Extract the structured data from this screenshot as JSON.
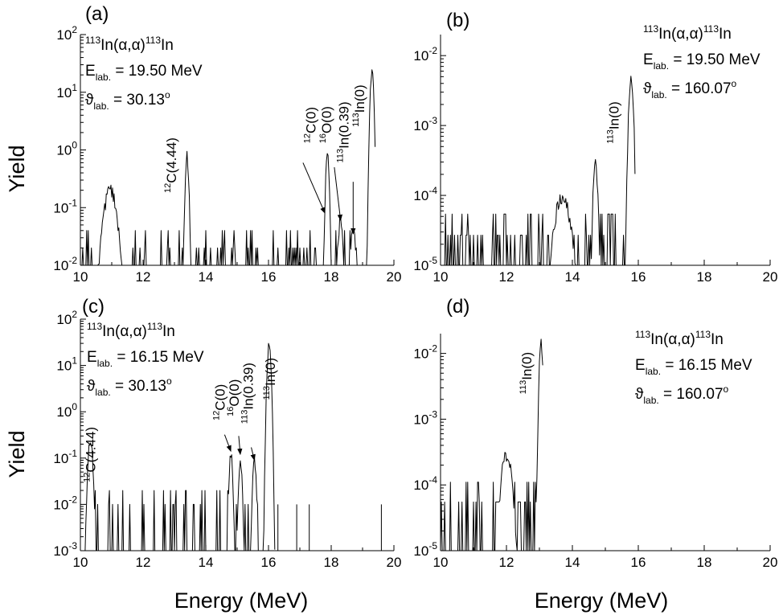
{
  "figure": {
    "ylabel": "Yield",
    "xlabel": "Energy (MeV)"
  },
  "chart_data": [
    {
      "id": "a",
      "type": "line",
      "panel_label": "(a)",
      "xlim": [
        10,
        20
      ],
      "x_ticks": [
        10,
        12,
        14,
        16,
        18,
        20
      ],
      "y_scale": "log",
      "ylim": [
        0.01,
        100
      ],
      "y_ticks": [
        {
          "v": 0.01,
          "m": "10",
          "e": "-2"
        },
        {
          "v": 0.1,
          "m": "10",
          "e": "-1"
        },
        {
          "v": 1,
          "m": "10",
          "e": "0"
        },
        {
          "v": 10,
          "m": "10",
          "e": "1"
        },
        {
          "v": 100,
          "m": "10",
          "e": "2"
        }
      ],
      "info": {
        "reaction": {
          "p1": "113",
          "t1": "In(α,α)",
          "p2": "113",
          "t2": "In"
        },
        "energy": {
          "sym": "E",
          "sub": "lab.",
          "val": " = 19.50 MeV"
        },
        "angle": {
          "sym": "ϑ",
          "sub": "lab.",
          "val": " = 30.13",
          "sup": "o"
        }
      },
      "peaks": [
        {
          "x": 10.95,
          "y": 0.2,
          "sigma": 0.15
        },
        {
          "x": 13.4,
          "y": 0.8,
          "sigma": 0.04
        },
        {
          "x": 17.88,
          "y": 0.8,
          "sigma": 0.04
        },
        {
          "x": 18.3,
          "y": 0.07,
          "sigma": 0.05
        },
        {
          "x": 18.7,
          "y": 0.045,
          "sigma": 0.06
        },
        {
          "x": 19.3,
          "y": 22,
          "sigma": 0.04
        }
      ],
      "spectrum_range": [
        10.0,
        19.42
      ],
      "background": {
        "level": 0.02,
        "density": 0.15
      },
      "annotations": [
        {
          "pre": "12",
          "text": "C(4.44)",
          "x": 13.05,
          "y": 0.18
        },
        {
          "pre": "12",
          "text": "C(0)",
          "x": 17.5,
          "y": 1.3
        },
        {
          "pre": "16",
          "text": "O(0)",
          "x": 18.0,
          "y": 1.3
        },
        {
          "pre": "113",
          "text": "In(0.39)",
          "x": 18.55,
          "y": 0.6
        },
        {
          "pre": "113",
          "text": "In(0)",
          "x": 19.05,
          "y": 2.5
        }
      ],
      "arrows": [
        {
          "from": [
            17.1,
            0.6
          ],
          "to": [
            17.8,
            0.08
          ]
        },
        {
          "from": [
            18.1,
            0.5
          ],
          "to": [
            18.3,
            0.06
          ]
        },
        {
          "from": [
            18.7,
            0.28
          ],
          "to": [
            18.7,
            0.035
          ]
        }
      ]
    },
    {
      "id": "b",
      "type": "line",
      "panel_label": "(b)",
      "xlim": [
        10,
        20
      ],
      "x_ticks": [
        10,
        12,
        14,
        16,
        18,
        20
      ],
      "y_scale": "log",
      "ylim": [
        1e-05,
        0.02
      ],
      "y_ticks": [
        {
          "v": 1e-05,
          "m": "10",
          "e": "-5"
        },
        {
          "v": 0.0001,
          "m": "10",
          "e": "-4"
        },
        {
          "v": 0.001,
          "m": "10",
          "e": "-3"
        },
        {
          "v": 0.01,
          "m": "10",
          "e": "-2"
        }
      ],
      "info": {
        "reaction": {
          "p1": "113",
          "t1": "In(α,α)",
          "p2": "113",
          "t2": "In"
        },
        "energy": {
          "sym": "E",
          "sub": "lab.",
          "val": " = 19.50 MeV"
        },
        "angle": {
          "sym": "ϑ",
          "sub": "lab.",
          "val": " = 160.07",
          "sup": "o"
        }
      },
      "peaks": [
        {
          "x": 13.7,
          "y": 0.0001,
          "sigma": 0.18
        },
        {
          "x": 14.7,
          "y": 0.0003,
          "sigma": 0.05
        },
        {
          "x": 15.78,
          "y": 0.0045,
          "sigma": 0.05
        }
      ],
      "spectrum_range": [
        10.0,
        15.9
      ],
      "background": {
        "level": 2.7e-05,
        "density": 0.35
      },
      "annotations": [
        {
          "pre": "113",
          "text": "In(0)",
          "x": 15.4,
          "y": 0.00055
        }
      ],
      "arrows": []
    },
    {
      "id": "c",
      "type": "line",
      "panel_label": "(c)",
      "xlim": [
        10,
        20
      ],
      "x_ticks": [
        10,
        12,
        14,
        16,
        18,
        20
      ],
      "y_scale": "log",
      "ylim": [
        0.001,
        100
      ],
      "y_ticks": [
        {
          "v": 0.001,
          "m": "10",
          "e": "-3"
        },
        {
          "v": 0.01,
          "m": "10",
          "e": "-2"
        },
        {
          "v": 0.1,
          "m": "10",
          "e": "-1"
        },
        {
          "v": 1,
          "m": "10",
          "e": "0"
        },
        {
          "v": 10,
          "m": "10",
          "e": "1"
        },
        {
          "v": 100,
          "m": "10",
          "e": "2"
        }
      ],
      "info": {
        "reaction": {
          "p1": "113",
          "t1": "In(α,α)",
          "p2": "113",
          "t2": "In"
        },
        "energy": {
          "sym": "E",
          "sub": "lab.",
          "val": " = 16.15 MeV"
        },
        "angle": {
          "sym": "ϑ",
          "sub": "lab.",
          "val": " = 30.13",
          "sup": "o"
        }
      },
      "peaks": [
        {
          "x": 10.32,
          "y": 0.26,
          "sigma": 0.05
        },
        {
          "x": 14.8,
          "y": 0.12,
          "sigma": 0.04
        },
        {
          "x": 15.1,
          "y": 0.08,
          "sigma": 0.04
        },
        {
          "x": 15.55,
          "y": 0.09,
          "sigma": 0.04
        },
        {
          "x": 16.02,
          "y": 28,
          "sigma": 0.04
        }
      ],
      "spectrum_range": [
        10.0,
        16.22
      ],
      "background": {
        "level": 0.01,
        "density": 0.2
      },
      "extra_spikes": [
        {
          "x": 16.3,
          "y": 0.01
        },
        {
          "x": 16.9,
          "y": 0.01
        },
        {
          "x": 17.3,
          "y": 0.01
        },
        {
          "x": 19.6,
          "y": 0.01
        }
      ],
      "annotations": [
        {
          "pre": "12",
          "text": "C(4.44)",
          "x": 10.48,
          "y": 0.03
        },
        {
          "pre": "12",
          "text": "C(0)",
          "x": 14.6,
          "y": 0.65
        },
        {
          "pre": "16",
          "text": "O(0)",
          "x": 15.05,
          "y": 0.8
        },
        {
          "pre": "113",
          "text": "In(0.39)",
          "x": 15.5,
          "y": 0.55
        },
        {
          "pre": "113",
          "text": "In(0)",
          "x": 16.2,
          "y": 1.8
        }
      ],
      "arrows": [
        {
          "from": [
            14.6,
            0.32
          ],
          "to": [
            14.8,
            0.14
          ]
        },
        {
          "from": [
            15.05,
            0.3
          ],
          "to": [
            15.1,
            0.12
          ]
        },
        {
          "from": [
            15.45,
            0.17
          ],
          "to": [
            15.55,
            0.09
          ]
        }
      ]
    },
    {
      "id": "d",
      "type": "line",
      "panel_label": "(d)",
      "xlim": [
        10,
        20
      ],
      "x_ticks": [
        10,
        12,
        14,
        16,
        18,
        20
      ],
      "y_scale": "log",
      "ylim": [
        1e-05,
        0.02
      ],
      "y_ticks": [
        {
          "v": 1e-05,
          "m": "10",
          "e": "-5"
        },
        {
          "v": 0.0001,
          "m": "10",
          "e": "-4"
        },
        {
          "v": 0.001,
          "m": "10",
          "e": "-3"
        },
        {
          "v": 0.01,
          "m": "10",
          "e": "-2"
        }
      ],
      "info": {
        "reaction": {
          "p1": "113",
          "t1": "In(α,α)",
          "p2": "113",
          "t2": "In"
        },
        "energy": {
          "sym": "E",
          "sub": "lab.",
          "val": " = 16.15 MeV"
        },
        "angle": {
          "sym": "ϑ",
          "sub": "lab.",
          "val": " = 160.07",
          "sup": "o"
        }
      },
      "peaks": [
        {
          "x": 12.0,
          "y": 0.0003,
          "sigma": 0.12
        },
        {
          "x": 13.05,
          "y": 0.015,
          "sigma": 0.04
        }
      ],
      "spectrum_range": [
        10.0,
        13.12
      ],
      "background": {
        "level": 5.5e-05,
        "density": 0.35
      },
      "annotations": [
        {
          "pre": "113",
          "text": "In(0)",
          "x": 12.75,
          "y": 0.0024
        }
      ],
      "arrows": []
    }
  ]
}
